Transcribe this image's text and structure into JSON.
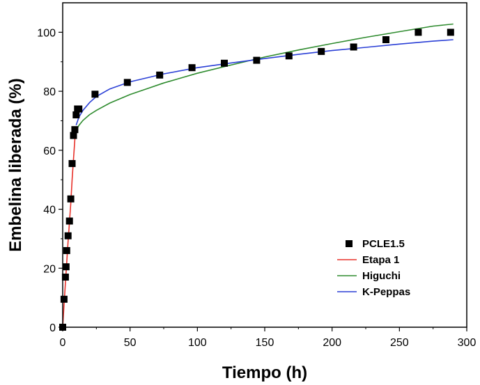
{
  "chart_data": {
    "type": "scatter",
    "xlabel": "Tiempo (h)",
    "ylabel": "Embelina liberada (%)",
    "xlim": [
      0,
      300
    ],
    "ylim": [
      0,
      110
    ],
    "xticks": [
      0,
      50,
      100,
      150,
      200,
      250,
      300
    ],
    "yticks": [
      0,
      20,
      40,
      60,
      80,
      100
    ],
    "grid": false,
    "legend_position": "bottom-right",
    "points": {
      "name": "PCLE1.5",
      "x": [
        0,
        1,
        2,
        2.5,
        3,
        4,
        5,
        6,
        7,
        8,
        9,
        10,
        11,
        12,
        24,
        48,
        72,
        96,
        120,
        144,
        168,
        192,
        216,
        240,
        264,
        288
      ],
      "y": [
        0,
        9.5,
        17,
        20.5,
        26,
        31,
        36,
        43.5,
        55.5,
        65,
        67,
        72,
        74,
        74,
        79,
        83,
        85.5,
        88,
        89.5,
        90.5,
        92,
        93.5,
        95,
        97.5,
        100,
        100
      ],
      "color": "#000000"
    },
    "series": [
      {
        "name": "Etapa 1",
        "color": "#e8312a",
        "x": [
          0,
          1,
          2,
          3,
          4,
          5,
          6,
          7,
          8,
          9,
          10
        ],
        "y": [
          0,
          7.5,
          15,
          22,
          29,
          35.5,
          42,
          50,
          57,
          63.5,
          68
        ]
      },
      {
        "name": "Higuchi",
        "color": "#2e8b2e",
        "x": [
          10,
          12,
          15,
          20,
          25,
          35,
          50,
          75,
          100,
          125,
          150,
          175,
          200,
          225,
          250,
          275,
          290
        ],
        "y": [
          66.7,
          68.4,
          70.1,
          72.1,
          73.5,
          76,
          78.9,
          82.8,
          86.1,
          88.9,
          91.6,
          94,
          96.2,
          98.3,
          100.2,
          102.1,
          102.8
        ]
      },
      {
        "name": "K-Peppas",
        "color": "#2a3fd6",
        "x": [
          10,
          12,
          15,
          20,
          25,
          35,
          50,
          75,
          100,
          125,
          150,
          175,
          200,
          225,
          250,
          275,
          290
        ],
        "y": [
          68.5,
          71.2,
          73.5,
          76.2,
          78.2,
          80.8,
          83.2,
          85.9,
          88,
          89.6,
          91.1,
          92.5,
          93.8,
          94.9,
          96,
          97,
          97.5
        ]
      }
    ]
  }
}
